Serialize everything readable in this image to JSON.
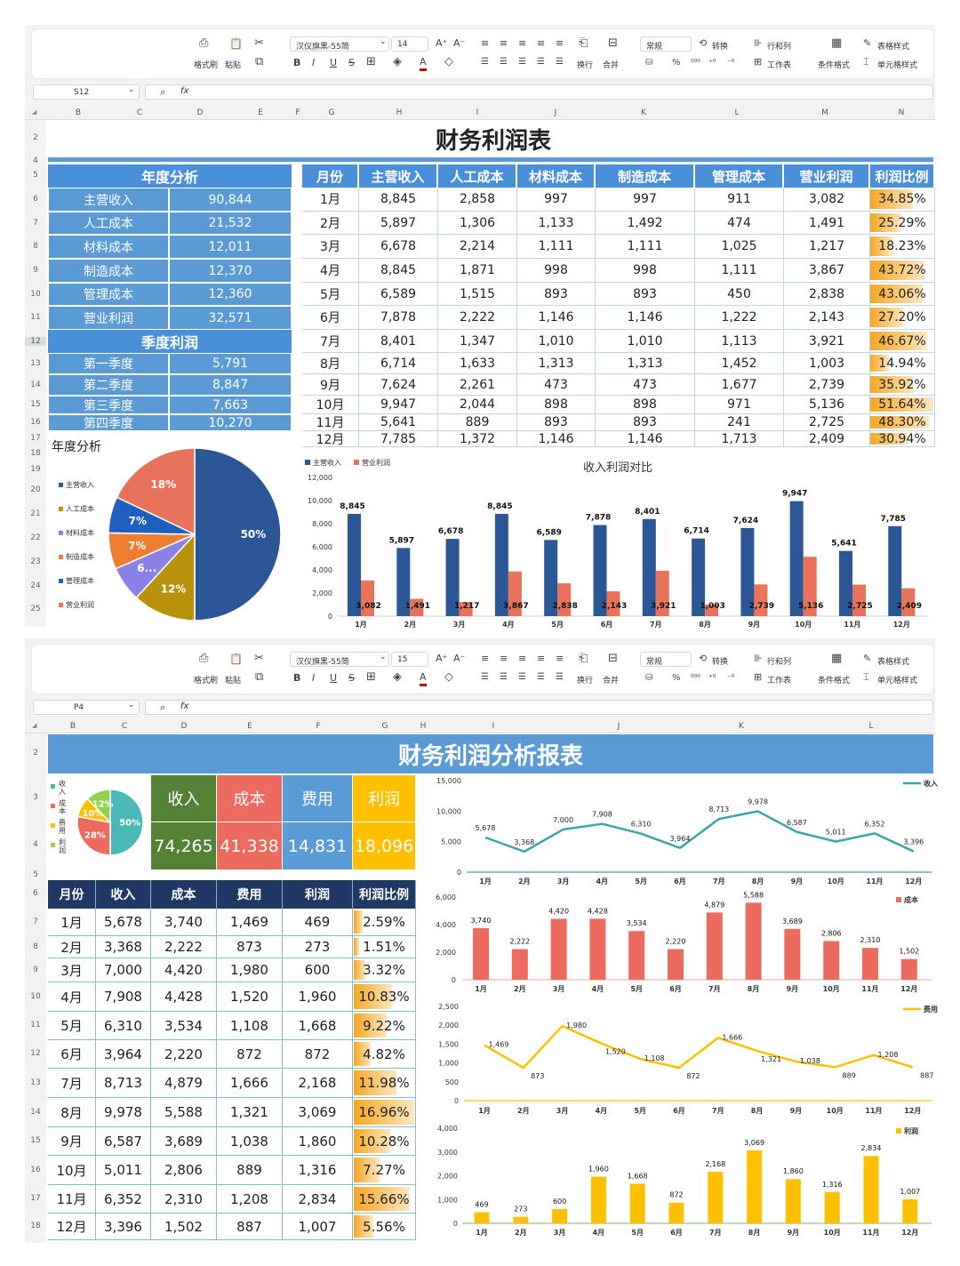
{
  "ribbon_labels": {
    "format_painter": "格式刷",
    "paste": "粘贴",
    "wrap": "换行",
    "merge": "合并",
    "number_format": "常规",
    "convert": "转换",
    "rows_cols": "行和列",
    "worksheet": "工作表",
    "cond_format": "条件格式",
    "table_style": "表格样式",
    "cell_style": "单元格样式"
  },
  "ribbons": [
    {
      "font": "汉仪旗黑-55简",
      "size": "14",
      "name_box": "S12"
    },
    {
      "font": "汉仪旗黑-55简",
      "size": "15",
      "name_box": "P4"
    }
  ],
  "fx_label": "fx",
  "sheet1": {
    "columns": [
      "B",
      "C",
      "D",
      "E",
      "F",
      "G",
      "H",
      "I",
      "J",
      "K",
      "L",
      "M",
      "N"
    ],
    "rows": [
      "2",
      "4",
      "5",
      "6",
      "7",
      "8",
      "9",
      "10",
      "11",
      "12",
      "13",
      "14",
      "15",
      "16",
      "17",
      "18",
      "19",
      "20",
      "21",
      "22",
      "23",
      "24",
      "25"
    ],
    "title": "财务利润表",
    "annual": {
      "header": "年度分析",
      "items": [
        {
          "label": "主营收入",
          "value": "90,844"
        },
        {
          "label": "人工成本",
          "value": "21,532"
        },
        {
          "label": "材料成本",
          "value": "12,011"
        },
        {
          "label": "制造成本",
          "value": "12,370"
        },
        {
          "label": "管理成本",
          "value": "12,360"
        },
        {
          "label": "营业利润",
          "value": "32,571"
        }
      ]
    },
    "quarterly": {
      "header": "季度利润",
      "items": [
        {
          "label": "第一季度",
          "value": "5,791"
        },
        {
          "label": "第二季度",
          "value": "8,847"
        },
        {
          "label": "第三季度",
          "value": "7,663"
        },
        {
          "label": "第四季度",
          "value": "10,270"
        }
      ]
    },
    "table": {
      "headers": [
        "月份",
        "主营收入",
        "人工成本",
        "材料成本",
        "制造成本",
        "管理成本",
        "营业利润",
        "利润比例"
      ],
      "rows": [
        [
          "1月",
          "8,845",
          "2,858",
          "997",
          "997",
          "911",
          "3,082",
          "34.85%"
        ],
        [
          "2月",
          "5,897",
          "1,306",
          "1,133",
          "1,492",
          "474",
          "1,491",
          "25.29%"
        ],
        [
          "3月",
          "6,678",
          "2,214",
          "1,111",
          "1,111",
          "1,025",
          "1,217",
          "18.23%"
        ],
        [
          "4月",
          "8,845",
          "1,871",
          "998",
          "998",
          "1,111",
          "3,867",
          "43.72%"
        ],
        [
          "5月",
          "6,589",
          "1,515",
          "893",
          "893",
          "450",
          "2,838",
          "43.06%"
        ],
        [
          "6月",
          "7,878",
          "2,222",
          "1,146",
          "1,146",
          "1,222",
          "2,143",
          "27.20%"
        ],
        [
          "7月",
          "8,401",
          "1,347",
          "1,010",
          "1,010",
          "1,113",
          "3,921",
          "46.67%"
        ],
        [
          "8月",
          "6,714",
          "1,633",
          "1,313",
          "1,313",
          "1,452",
          "1,003",
          "14.94%"
        ],
        [
          "9月",
          "7,624",
          "2,261",
          "473",
          "473",
          "1,677",
          "2,739",
          "35.92%"
        ],
        [
          "10月",
          "9,947",
          "2,044",
          "898",
          "898",
          "971",
          "5,136",
          "51.64%"
        ],
        [
          "11月",
          "5,641",
          "889",
          "893",
          "893",
          "241",
          "2,725",
          "48.30%"
        ],
        [
          "12月",
          "7,785",
          "1,372",
          "1,146",
          "1,146",
          "1,713",
          "2,409",
          "30.94%"
        ]
      ]
    }
  },
  "sheet2": {
    "columns": [
      "B",
      "C",
      "D",
      "E",
      "F",
      "G",
      "H",
      "I",
      "J",
      "K",
      "L"
    ],
    "rows": [
      "2",
      "3",
      "4",
      "5",
      "6",
      "7",
      "8",
      "9",
      "10",
      "11",
      "12",
      "13",
      "14",
      "15",
      "16",
      "17",
      "18"
    ],
    "title": "财务利润分析报表",
    "kpis": [
      {
        "label": "收入",
        "value": "74,265",
        "color": "#548235"
      },
      {
        "label": "成本",
        "value": "41,338",
        "color": "#ec6b5e"
      },
      {
        "label": "费用",
        "value": "14,831",
        "color": "#5b9bd5"
      },
      {
        "label": "利润",
        "value": "18,096",
        "color": "#ffc000"
      }
    ],
    "table": {
      "headers": [
        "月份",
        "收入",
        "成本",
        "费用",
        "利润",
        "利润比例"
      ],
      "rows": [
        [
          "1月",
          "5,678",
          "3,740",
          "1,469",
          "469",
          "2.59%"
        ],
        [
          "2月",
          "3,368",
          "2,222",
          "873",
          "273",
          "1.51%"
        ],
        [
          "3月",
          "7,000",
          "4,420",
          "1,980",
          "600",
          "3.32%"
        ],
        [
          "4月",
          "7,908",
          "4,428",
          "1,520",
          "1,960",
          "10.83%"
        ],
        [
          "5月",
          "6,310",
          "3,534",
          "1,108",
          "1,668",
          "9.22%"
        ],
        [
          "6月",
          "3,964",
          "2,220",
          "872",
          "872",
          "4.82%"
        ],
        [
          "7月",
          "8,713",
          "4,879",
          "1,666",
          "2,168",
          "11.98%"
        ],
        [
          "8月",
          "9,978",
          "5,588",
          "1,321",
          "3,069",
          "16.96%"
        ],
        [
          "9月",
          "6,587",
          "3,689",
          "1,038",
          "1,860",
          "10.28%"
        ],
        [
          "10月",
          "5,011",
          "2,806",
          "889",
          "1,316",
          "7.27%"
        ],
        [
          "11月",
          "6,352",
          "2,310",
          "1,208",
          "2,834",
          "15.66%"
        ],
        [
          "12月",
          "3,396",
          "1,502",
          "887",
          "1,007",
          "5.56%"
        ]
      ]
    }
  },
  "colors": {
    "sheet1_header": "#4a90d9",
    "sheet1_cells": "#5b9bd5",
    "sheet2_header": "#1f3864",
    "databar": "#f5a623"
  },
  "chart_data": [
    {
      "type": "pie",
      "title": "年度分析",
      "categories": [
        "主营收入",
        "人工成本",
        "材料成本",
        "制造成本",
        "管理成本",
        "营业利润"
      ],
      "values": [
        90844,
        21532,
        12011,
        12370,
        12360,
        32571
      ],
      "labels": [
        "50%",
        "12%",
        "6...",
        "7%",
        "7%",
        "18%"
      ],
      "colors": [
        "#2b5797",
        "#b8920a",
        "#8b7fe8",
        "#ed7d31",
        "#1f5fbf",
        "#e8735a"
      ],
      "legend": "left"
    },
    {
      "type": "bar",
      "title": "收入利润对比",
      "categories": [
        "1月",
        "2月",
        "3月",
        "4月",
        "5月",
        "6月",
        "7月",
        "8月",
        "9月",
        "10月",
        "11月",
        "12月"
      ],
      "series": [
        {
          "name": "主营收入",
          "values": [
            8845,
            5897,
            6678,
            8845,
            6589,
            7878,
            8401,
            6714,
            7624,
            9947,
            5641,
            7785
          ],
          "color": "#2b5797"
        },
        {
          "name": "营业利润",
          "values": [
            3082,
            1491,
            1217,
            3867,
            2838,
            2143,
            3921,
            1003,
            2739,
            5136,
            2725,
            2409
          ],
          "color": "#e8735a"
        }
      ],
      "ylim": [
        0,
        12000
      ],
      "ytick_step": 2000,
      "legend": "top-left",
      "grid": false
    },
    {
      "type": "pie",
      "categories": [
        "收入",
        "成本",
        "费用",
        "利润"
      ],
      "values": [
        74265,
        41338,
        14831,
        18096
      ],
      "labels": [
        "50%",
        "28%",
        "10%",
        "12%"
      ],
      "colors": [
        "#4bb8b8",
        "#ec6b5e",
        "#ffc000",
        "#92d050"
      ],
      "legend": "left"
    },
    {
      "type": "line",
      "categories": [
        "1月",
        "2月",
        "3月",
        "4月",
        "5月",
        "6月",
        "7月",
        "8月",
        "9月",
        "10月",
        "11月",
        "12月"
      ],
      "series": [
        {
          "name": "收入",
          "values": [
            5678,
            3368,
            7000,
            7908,
            6310,
            3964,
            8713,
            9978,
            6587,
            5011,
            6352,
            3396
          ],
          "color": "#3aa5a5"
        }
      ],
      "ylim": [
        0,
        15000
      ],
      "ytick_step": 5000,
      "legend": "top-right",
      "grid": false
    },
    {
      "type": "bar",
      "categories": [
        "1月",
        "2月",
        "3月",
        "4月",
        "5月",
        "6月",
        "7月",
        "8月",
        "9月",
        "10月",
        "11月",
        "12月"
      ],
      "series": [
        {
          "name": "成本",
          "values": [
            3740,
            2222,
            4420,
            4428,
            3534,
            2220,
            4879,
            5588,
            3689,
            2806,
            2310,
            1502
          ],
          "color": "#ec6b5e"
        }
      ],
      "ylim": [
        0,
        6000
      ],
      "ytick_step": 2000,
      "legend": "top-right",
      "grid": false
    },
    {
      "type": "line",
      "categories": [
        "1月",
        "2月",
        "3月",
        "4月",
        "5月",
        "6月",
        "7月",
        "8月",
        "9月",
        "10月",
        "11月",
        "12月"
      ],
      "series": [
        {
          "name": "费用",
          "values": [
            1469,
            873,
            1980,
            1520,
            1108,
            872,
            1666,
            1321,
            1038,
            889,
            1208,
            887
          ],
          "color": "#ffc000"
        }
      ],
      "ylim": [
        0,
        2500
      ],
      "ytick_step": 500,
      "legend": "top-right",
      "grid": false
    },
    {
      "type": "bar",
      "categories": [
        "1月",
        "2月",
        "3月",
        "4月",
        "5月",
        "6月",
        "7月",
        "8月",
        "9月",
        "10月",
        "11月",
        "12月"
      ],
      "series": [
        {
          "name": "利润",
          "values": [
            469,
            273,
            600,
            1960,
            1668,
            872,
            2168,
            3069,
            1860,
            1316,
            2834,
            1007
          ],
          "color": "#ffc000"
        }
      ],
      "ylim": [
        0,
        4000
      ],
      "ytick_step": 1000,
      "legend": "top-right",
      "grid": false
    }
  ]
}
